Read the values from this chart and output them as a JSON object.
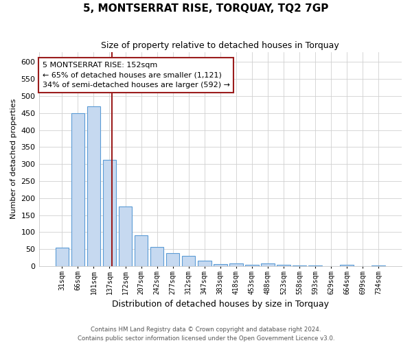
{
  "title": "5, MONTSERRAT RISE, TORQUAY, TQ2 7GP",
  "subtitle": "Size of property relative to detached houses in Torquay",
  "xlabel": "Distribution of detached houses by size in Torquay",
  "ylabel": "Number of detached properties",
  "bar_labels": [
    "31sqm",
    "66sqm",
    "101sqm",
    "137sqm",
    "172sqm",
    "207sqm",
    "242sqm",
    "277sqm",
    "312sqm",
    "347sqm",
    "383sqm",
    "418sqm",
    "453sqm",
    "488sqm",
    "523sqm",
    "558sqm",
    "593sqm",
    "629sqm",
    "664sqm",
    "699sqm",
    "734sqm"
  ],
  "bar_values": [
    55,
    450,
    470,
    313,
    175,
    90,
    57,
    38,
    30,
    16,
    6,
    8,
    4,
    8,
    4,
    1,
    1,
    0,
    3,
    0,
    2
  ],
  "bar_color": "#c6d9f0",
  "bar_edge_color": "#5b9bd5",
  "grid_color": "#d0d0d0",
  "vline_color": "#9b1c1c",
  "annotation_text": "5 MONTSERRAT RISE: 152sqm\n← 65% of detached houses are smaller (1,121)\n34% of semi-detached houses are larger (592) →",
  "annotation_box_color": "white",
  "annotation_box_edge": "#9b1c1c",
  "ylim": [
    0,
    630
  ],
  "yticks": [
    0,
    50,
    100,
    150,
    200,
    250,
    300,
    350,
    400,
    450,
    500,
    550,
    600
  ],
  "footer_line1": "Contains HM Land Registry data © Crown copyright and database right 2024.",
  "footer_line2": "Contains public sector information licensed under the Open Government Licence v3.0.",
  "bg_color": "#ffffff"
}
